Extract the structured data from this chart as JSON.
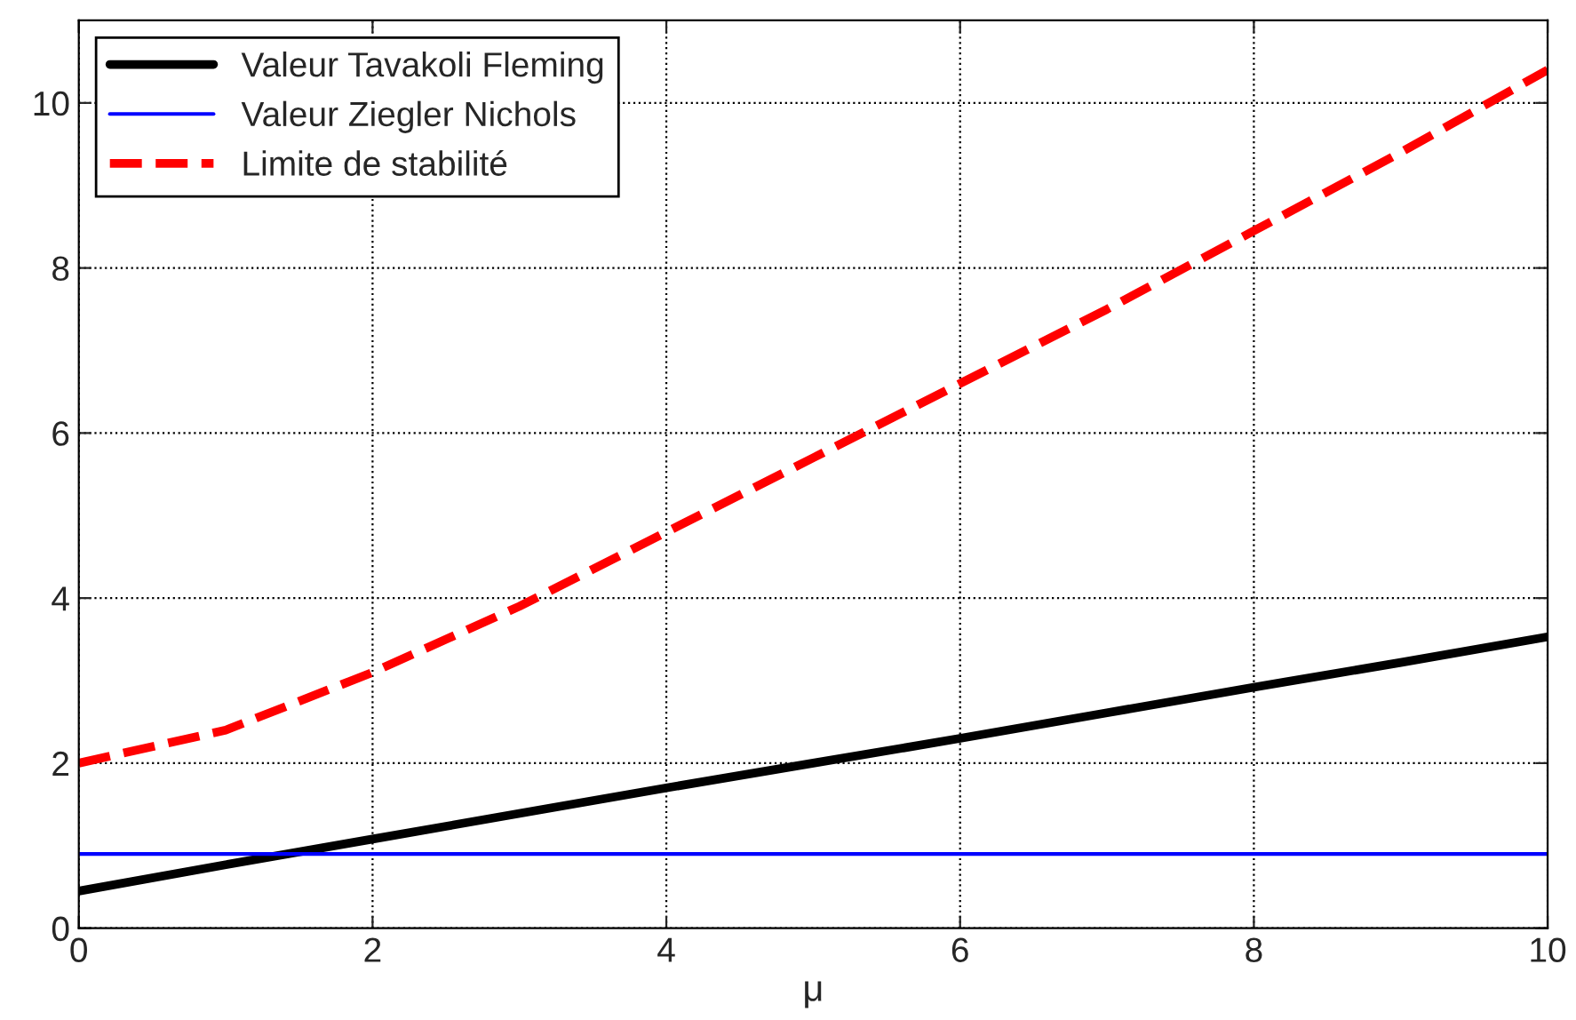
{
  "chart_data": {
    "type": "line",
    "xlabel": "μ",
    "xlim": [
      0,
      10
    ],
    "ylim": [
      0,
      11
    ],
    "xticks": [
      0,
      2,
      4,
      6,
      8,
      10
    ],
    "yticks": [
      0,
      2,
      4,
      6,
      8,
      10
    ],
    "grid": true,
    "legend": "top left",
    "x": [
      0,
      1,
      2,
      3,
      4,
      5,
      6,
      7,
      8,
      9,
      10
    ],
    "series": [
      {
        "name": "Valeur Tavakoli Fleming",
        "color": "#000000",
        "line_style": "solid",
        "values": [
          0.45,
          0.77,
          1.08,
          1.39,
          1.7,
          2.0,
          2.3,
          2.61,
          2.92,
          3.22,
          3.53
        ]
      },
      {
        "name": "Valeur Ziegler Nichols",
        "color": "#0000ff",
        "line_style": "solid",
        "values": [
          0.9,
          0.9,
          0.9,
          0.9,
          0.9,
          0.9,
          0.9,
          0.9,
          0.9,
          0.9,
          0.9
        ]
      },
      {
        "name": "Limite de stabilité",
        "color": "#ff0000",
        "line_style": "dashed",
        "values": [
          2.0,
          2.4,
          3.1,
          3.9,
          4.8,
          5.7,
          6.6,
          7.5,
          8.45,
          9.4,
          10.4
        ]
      }
    ]
  }
}
